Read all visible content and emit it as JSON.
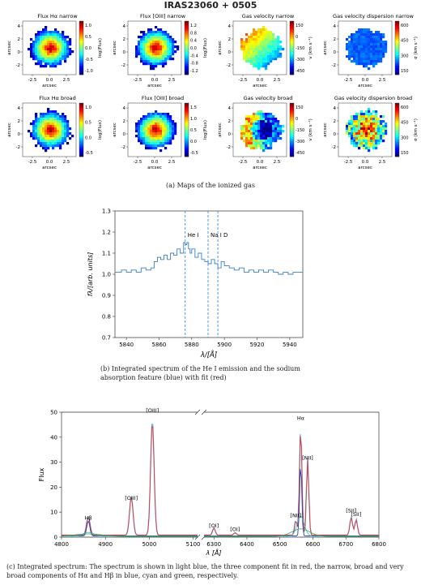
{
  "figure_title": "IRAS23060 + 0505",
  "maps": [
    {
      "title": "Flux Hα narrow",
      "cbar_label": "log(Flux)",
      "cbar_ticks": [
        "1.0",
        "0.5",
        "0.0",
        "-0.5",
        "-1.0"
      ],
      "cmap": "jet"
    },
    {
      "title": "Flux [OIII] narrow",
      "cbar_label": "log(Flux)",
      "cbar_ticks": [
        "1.2",
        "0.8",
        "0.4",
        "0.0",
        "-0.4",
        "-0.8",
        "-1.2"
      ],
      "cmap": "jet"
    },
    {
      "title": "Gas velocity narrow",
      "cbar_label": "v (km s⁻¹)",
      "cbar_ticks": [
        "150",
        "0",
        "-150",
        "-300",
        "-450"
      ],
      "cmap": "jet"
    },
    {
      "title": "Gas velocity dispersion narrow",
      "cbar_label": "σ (km s⁻¹)",
      "cbar_ticks": [
        "600",
        "450",
        "300",
        "150"
      ],
      "cmap": "jet"
    },
    {
      "title": "Flux Hα broad",
      "cbar_label": "log(Flux)",
      "cbar_ticks": [
        "1.0",
        "0.5",
        "0.0",
        "-0.5"
      ],
      "cmap": "jet"
    },
    {
      "title": "Flux [OIII] broad",
      "cbar_label": "log(Flux)",
      "cbar_ticks": [
        "1.5",
        "1.0",
        "0.5",
        "0.0",
        "-0.5"
      ],
      "cmap": "jet"
    },
    {
      "title": "Gas velocity broad",
      "cbar_label": "v (km s⁻¹)",
      "cbar_ticks": [
        "150",
        "0",
        "-150",
        "-300",
        "-450"
      ],
      "cmap": "jet"
    },
    {
      "title": "Gas velocity dispersion broad",
      "cbar_label": "σ (km s⁻¹)",
      "cbar_ticks": [
        "600",
        "450",
        "300",
        "150"
      ],
      "cmap": "jet"
    }
  ],
  "map_axes": {
    "xlabel": "arcsec",
    "ylabel": "arcsec",
    "xticks": [
      "-2.5",
      "0.0",
      "2.5"
    ],
    "yticks": [
      "4",
      "2",
      "0",
      "-2"
    ]
  },
  "caption_a": "(a)  Maps of the ionized gas",
  "caption_b": "(b)  Integrated spectrum of the He I emission and the sodium absorption feature (blue) with fit (red)",
  "caption_c": "(c)  Integrated spectrum: The spectrum is shown in light blue, the three component fit in red, the narrow, broad and very broad components of Hα and Hβ in blue, cyan and green, respectively.",
  "chart_data": [
    {
      "type": "line",
      "title": "",
      "xlabel": "λ/[Å]",
      "ylabel": "fλ/[arb. units]",
      "xlim": [
        5833,
        5948
      ],
      "ylim": [
        0.7,
        1.3
      ],
      "xticks": [
        5840,
        5860,
        5880,
        5900,
        5920,
        5940
      ],
      "yticks": [
        0.7,
        0.8,
        0.9,
        1.0,
        1.1,
        1.2,
        1.3
      ],
      "lines_marked": [
        {
          "label": "He I",
          "x": 5876
        },
        {
          "label": "Na I D",
          "x": 5890
        },
        {
          "label": "",
          "x": 5896
        }
      ],
      "series": [
        {
          "x": [
            5833,
            5837,
            5840,
            5843,
            5846,
            5849,
            5852,
            5855,
            5857,
            5859,
            5861,
            5863,
            5865,
            5867,
            5869,
            5871,
            5873,
            5875,
            5876,
            5877,
            5878,
            5879,
            5880,
            5882,
            5884,
            5886,
            5888,
            5890,
            5892,
            5894,
            5896,
            5898,
            5900,
            5903,
            5906,
            5909,
            5912,
            5915,
            5918,
            5921,
            5924,
            5927,
            5930,
            5933,
            5936,
            5939,
            5942,
            5945,
            5948
          ],
          "y": [
            1.01,
            1.02,
            1.01,
            1.02,
            1.01,
            1.03,
            1.02,
            1.03,
            1.06,
            1.08,
            1.07,
            1.09,
            1.07,
            1.1,
            1.09,
            1.12,
            1.1,
            1.15,
            1.14,
            1.15,
            1.12,
            1.1,
            1.12,
            1.08,
            1.1,
            1.07,
            1.06,
            1.05,
            1.07,
            1.05,
            1.03,
            1.06,
            1.04,
            1.03,
            1.02,
            1.03,
            1.01,
            1.02,
            1.01,
            1.02,
            1.01,
            1.02,
            1.01,
            1.0,
            1.01,
            1.0,
            1.01,
            1.01,
            1.01
          ]
        }
      ]
    },
    {
      "type": "line",
      "title": "",
      "xlabel": "λ [Å]",
      "ylabel": "Flux",
      "ylim": [
        0,
        50
      ],
      "yticks": [
        0,
        10,
        20,
        30,
        40,
        50
      ],
      "xticks_left": [
        4800,
        4900,
        5000,
        5100
      ],
      "xticks_right": [
        6300,
        6400,
        6500,
        6600,
        6700,
        6800
      ],
      "xlim_left": [
        4800,
        5110
      ],
      "xlim_right": [
        6270,
        6800
      ],
      "annotations": [
        {
          "label": "Hβ",
          "x": 4861,
          "y": 6
        },
        {
          "label": "[OIII]",
          "x": 4959,
          "y": 14
        },
        {
          "label": "[OIII]",
          "x": 5007,
          "y": 49
        },
        {
          "label": "[OI]",
          "x": 6300,
          "y": 3
        },
        {
          "label": "[OI]",
          "x": 6364,
          "y": 1.5
        },
        {
          "label": "[NII]",
          "x": 6548,
          "y": 7
        },
        {
          "label": "Hα",
          "x": 6563,
          "y": 46
        },
        {
          "label": "[NII]",
          "x": 6584,
          "y": 30
        },
        {
          "label": "[SII]",
          "x": 6716,
          "y": 9
        },
        {
          "label": "[SII]",
          "x": 6731,
          "y": 7.5
        }
      ],
      "series": [
        {
          "role": "spectrum",
          "color": "#7fb2e0",
          "peaks": [
            [
              4861,
              7.5
            ],
            [
              4959,
              15.5
            ],
            [
              5007,
              46
            ],
            [
              6300,
              3
            ],
            [
              6364,
              1
            ],
            [
              6548,
              6
            ],
            [
              6563,
              44
            ],
            [
              6584,
              31
            ],
            [
              6716,
              7.5
            ],
            [
              6731,
              6.5
            ]
          ]
        },
        {
          "role": "fit",
          "color": "#e0302e",
          "peaks": [
            [
              4861,
              7
            ],
            [
              4959,
              15
            ],
            [
              5007,
              45
            ],
            [
              6300,
              2.8
            ],
            [
              6364,
              1
            ],
            [
              6548,
              6
            ],
            [
              6563,
              43
            ],
            [
              6584,
              30
            ],
            [
              6716,
              7
            ],
            [
              6731,
              6
            ]
          ]
        },
        {
          "role": "narrow",
          "color": "#2b3ea8",
          "peaks": [
            [
              4861,
              6
            ],
            [
              6563,
              30
            ]
          ]
        },
        {
          "role": "broad",
          "color": "#39b6c8",
          "peaks": [
            [
              4861,
              1.5
            ],
            [
              6563,
              8
            ]
          ]
        },
        {
          "role": "very broad",
          "color": "#3aa845",
          "peaks": [
            [
              4861,
              1
            ],
            [
              6563,
              3
            ]
          ]
        }
      ]
    }
  ]
}
